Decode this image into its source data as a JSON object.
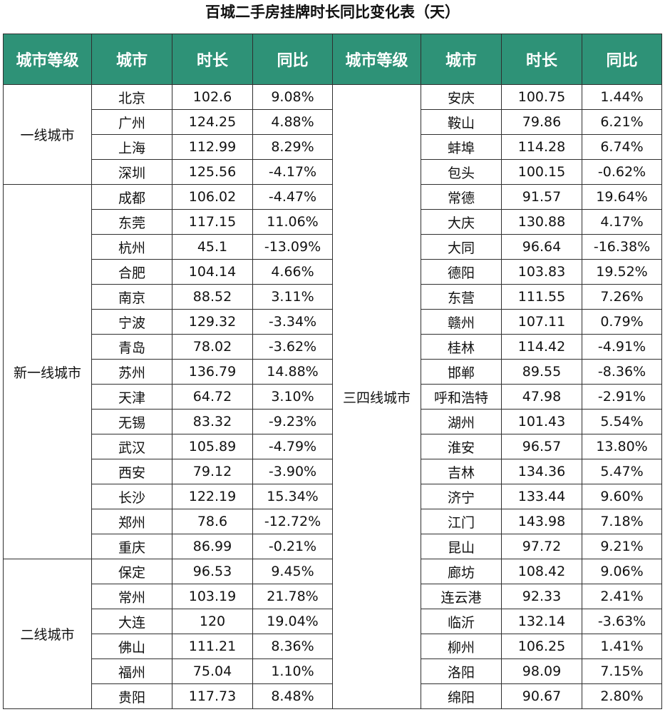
{
  "title": "百城二手房挂牌时长同比变化表（天）",
  "headers": [
    "城市等级",
    "城市",
    "时长",
    "同比",
    "城市等级",
    "城市",
    "时长",
    "同比"
  ],
  "left": [
    {
      "tier": "一线城市",
      "rows": [
        {
          "city": "北京",
          "duration": "102.6",
          "yoy": "9.08%"
        },
        {
          "city": "广州",
          "duration": "124.25",
          "yoy": "4.88%"
        },
        {
          "city": "上海",
          "duration": "112.99",
          "yoy": "8.29%"
        },
        {
          "city": "深圳",
          "duration": "125.56",
          "yoy": "-4.17%"
        }
      ]
    },
    {
      "tier": "新一线城市",
      "rows": [
        {
          "city": "成都",
          "duration": "106.02",
          "yoy": "-4.47%"
        },
        {
          "city": "东莞",
          "duration": "117.15",
          "yoy": "11.06%"
        },
        {
          "city": "杭州",
          "duration": "45.1",
          "yoy": "-13.09%"
        },
        {
          "city": "合肥",
          "duration": "104.14",
          "yoy": "4.66%"
        },
        {
          "city": "南京",
          "duration": "88.52",
          "yoy": "3.11%"
        },
        {
          "city": "宁波",
          "duration": "129.32",
          "yoy": "-3.34%"
        },
        {
          "city": "青岛",
          "duration": "78.02",
          "yoy": "-3.62%"
        },
        {
          "city": "苏州",
          "duration": "136.79",
          "yoy": "14.88%"
        },
        {
          "city": "天津",
          "duration": "64.72",
          "yoy": "3.10%"
        },
        {
          "city": "无锡",
          "duration": "83.32",
          "yoy": "-9.23%"
        },
        {
          "city": "武汉",
          "duration": "105.89",
          "yoy": "-4.79%"
        },
        {
          "city": "西安",
          "duration": "79.12",
          "yoy": "-3.90%"
        },
        {
          "city": "长沙",
          "duration": "122.19",
          "yoy": "15.34%"
        },
        {
          "city": "郑州",
          "duration": "78.6",
          "yoy": "-12.72%"
        },
        {
          "city": "重庆",
          "duration": "86.99",
          "yoy": "-0.21%"
        }
      ]
    },
    {
      "tier": "二线城市",
      "rows": [
        {
          "city": "保定",
          "duration": "96.53",
          "yoy": "9.45%"
        },
        {
          "city": "常州",
          "duration": "103.19",
          "yoy": "21.78%"
        },
        {
          "city": "大连",
          "duration": "120",
          "yoy": "19.04%"
        },
        {
          "city": "佛山",
          "duration": "111.21",
          "yoy": "8.36%"
        },
        {
          "city": "福州",
          "duration": "75.04",
          "yoy": "1.10%"
        },
        {
          "city": "贵阳",
          "duration": "117.73",
          "yoy": "8.48%"
        }
      ]
    }
  ],
  "right": [
    {
      "tier": "三四线城市",
      "rows": [
        {
          "city": "安庆",
          "duration": "100.75",
          "yoy": "1.44%"
        },
        {
          "city": "鞍山",
          "duration": "79.86",
          "yoy": "6.21%"
        },
        {
          "city": "蚌埠",
          "duration": "114.28",
          "yoy": "6.74%"
        },
        {
          "city": "包头",
          "duration": "100.15",
          "yoy": "-0.62%"
        },
        {
          "city": "常德",
          "duration": "91.57",
          "yoy": "19.64%"
        },
        {
          "city": "大庆",
          "duration": "130.88",
          "yoy": "4.17%"
        },
        {
          "city": "大同",
          "duration": "96.64",
          "yoy": "-16.38%"
        },
        {
          "city": "德阳",
          "duration": "103.83",
          "yoy": "19.52%"
        },
        {
          "city": "东营",
          "duration": "111.55",
          "yoy": "7.26%"
        },
        {
          "city": "赣州",
          "duration": "107.11",
          "yoy": "0.79%"
        },
        {
          "city": "桂林",
          "duration": "114.42",
          "yoy": "-4.91%"
        },
        {
          "city": "邯郸",
          "duration": "89.55",
          "yoy": "-8.36%"
        },
        {
          "city": "呼和浩特",
          "duration": "47.98",
          "yoy": "-2.91%"
        },
        {
          "city": "湖州",
          "duration": "101.43",
          "yoy": "5.54%"
        },
        {
          "city": "淮安",
          "duration": "96.57",
          "yoy": "13.80%"
        },
        {
          "city": "吉林",
          "duration": "134.36",
          "yoy": "5.47%"
        },
        {
          "city": "济宁",
          "duration": "133.44",
          "yoy": "9.60%"
        },
        {
          "city": "江门",
          "duration": "143.98",
          "yoy": "7.18%"
        },
        {
          "city": "昆山",
          "duration": "97.72",
          "yoy": "9.21%"
        },
        {
          "city": "廊坊",
          "duration": "108.42",
          "yoy": "9.06%"
        },
        {
          "city": "连云港",
          "duration": "92.33",
          "yoy": "2.41%"
        },
        {
          "city": "临沂",
          "duration": "132.14",
          "yoy": "-3.63%"
        },
        {
          "city": "柳州",
          "duration": "106.25",
          "yoy": "1.41%"
        },
        {
          "city": "洛阳",
          "duration": "98.09",
          "yoy": "7.15%"
        },
        {
          "city": "绵阳",
          "duration": "90.67",
          "yoy": "2.80%"
        }
      ]
    }
  ]
}
